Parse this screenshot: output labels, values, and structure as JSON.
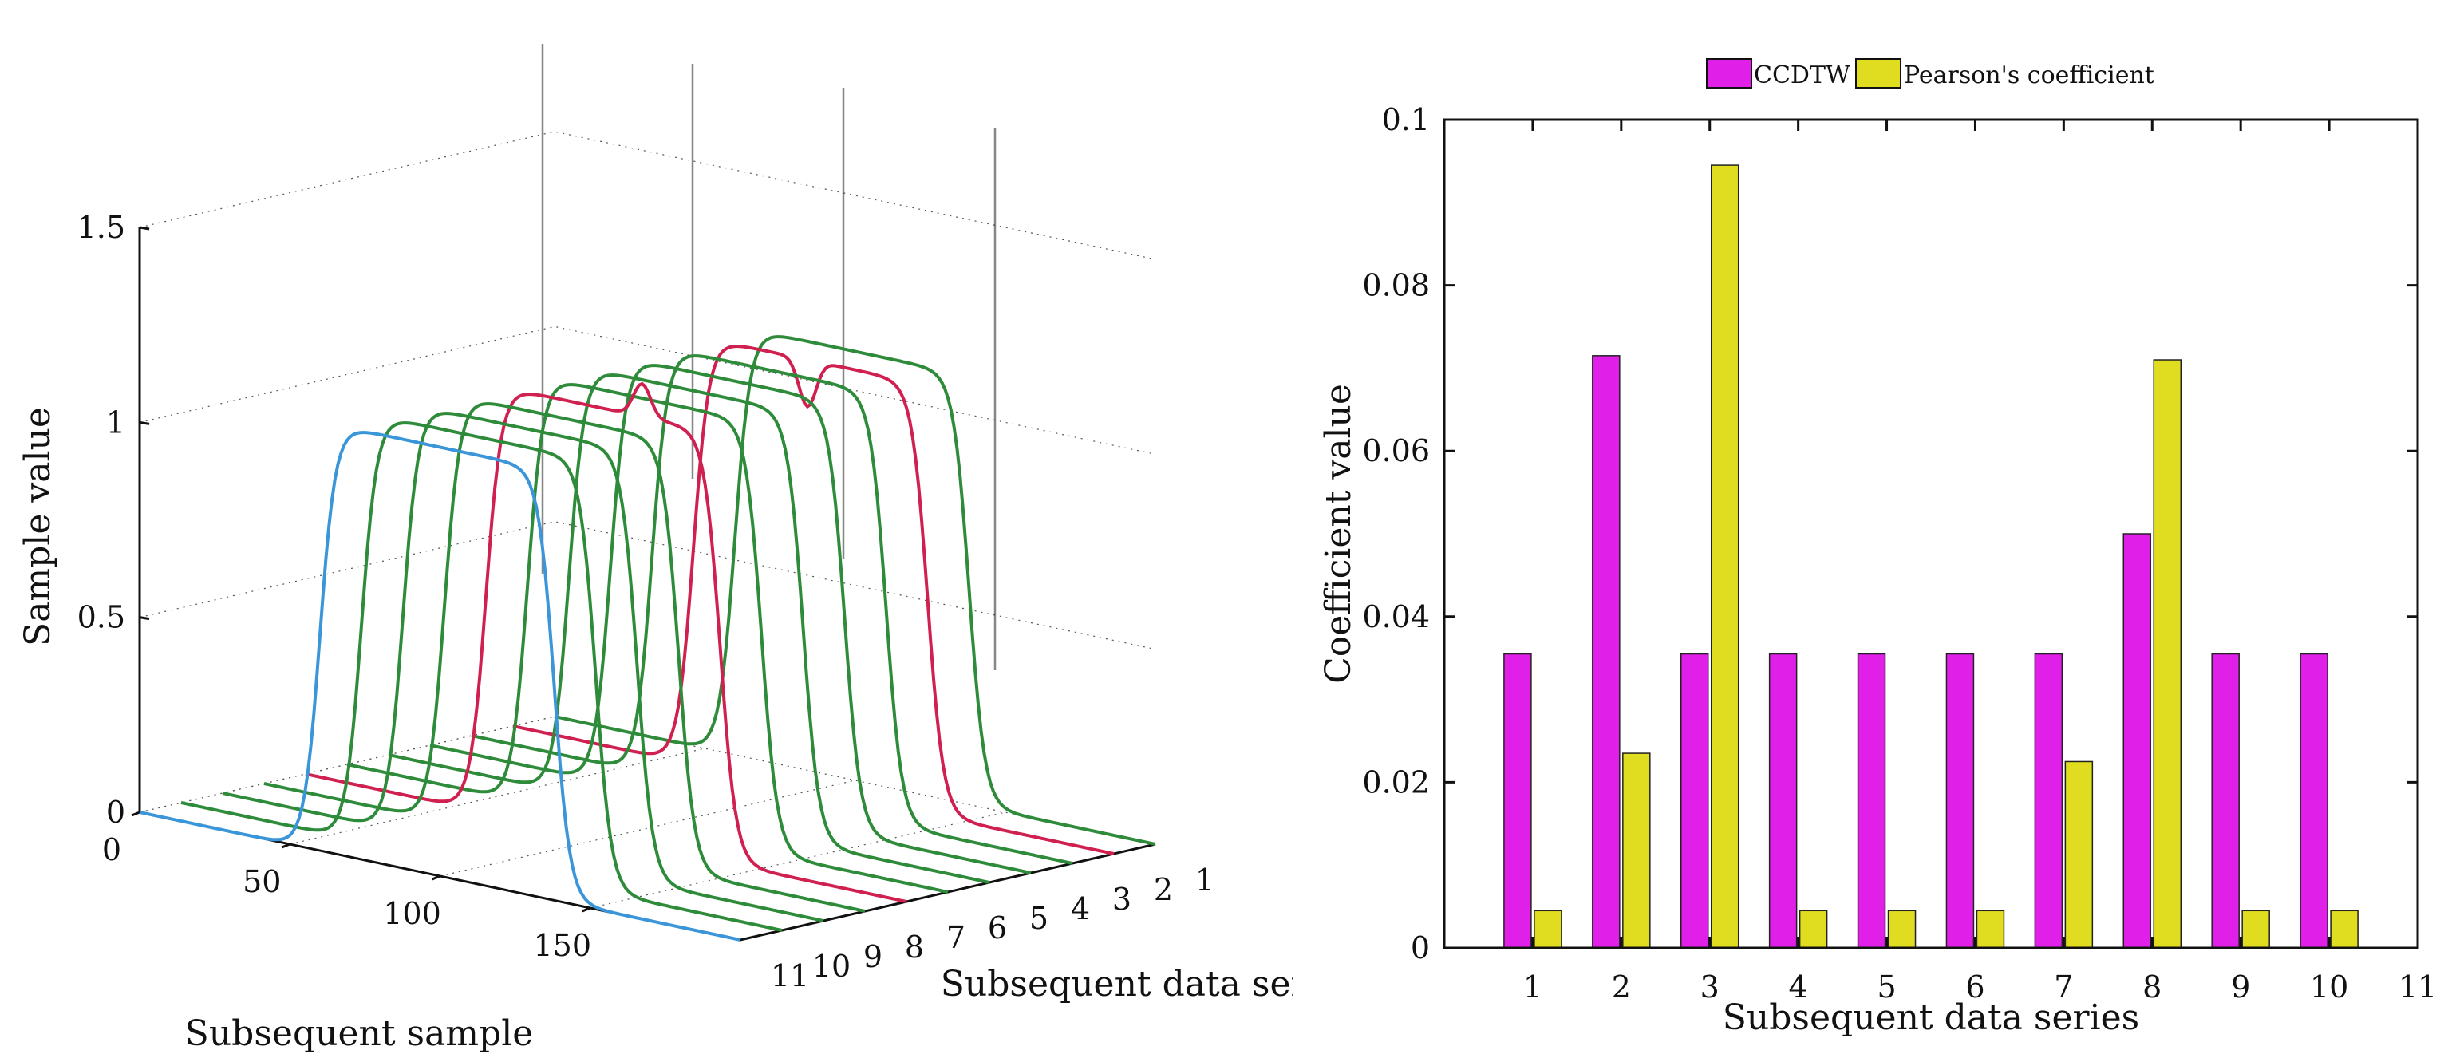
{
  "chart_data": [
    {
      "type": "line3d",
      "panel": "left",
      "zlabel": "Sample value",
      "xlabel": "Subsequent sample",
      "ylabel": "Subsequent data series",
      "z_ticks": [
        "0",
        "0.5",
        "1",
        "1.5"
      ],
      "x_ticks": [
        "0",
        "50",
        "100",
        "150"
      ],
      "y_ticks": [
        "1",
        "2",
        "3",
        "4",
        "5",
        "6",
        "7",
        "8",
        "9",
        "10",
        "11"
      ],
      "zlim": [
        0,
        1.5
      ],
      "xlim": [
        0,
        200
      ],
      "series_count": 11,
      "series": [
        {
          "name": "1",
          "color": "#2e8b3a",
          "level": 1.1,
          "dip": false
        },
        {
          "name": "2",
          "color": "#d02050",
          "level": 1.1,
          "dip": true
        },
        {
          "name": "3",
          "color": "#2e8b3a",
          "level": 1.1,
          "dip": false
        },
        {
          "name": "4",
          "color": "#2e8b3a",
          "level": 1.1,
          "dip": false
        },
        {
          "name": "5",
          "color": "#2e8b3a",
          "level": 1.1,
          "dip": false
        },
        {
          "name": "6",
          "color": "#2e8b3a",
          "level": 1.1,
          "dip": false
        },
        {
          "name": "7",
          "color": "#d02050",
          "level": 1.1,
          "dip": true
        },
        {
          "name": "8",
          "color": "#2e8b3a",
          "level": 1.1,
          "dip": false
        },
        {
          "name": "9",
          "color": "#2e8b3a",
          "level": 1.1,
          "dip": false
        },
        {
          "name": "10",
          "color": "#2e8b3a",
          "level": 1.1,
          "dip": false
        },
        {
          "name": "11",
          "color": "#3a96d8",
          "level": 1.1,
          "dip": false
        }
      ]
    },
    {
      "type": "bar",
      "panel": "right",
      "title": "",
      "xlabel": "Subsequent data series",
      "ylabel": "Coefficient value",
      "categories": [
        "1",
        "2",
        "3",
        "4",
        "5",
        "6",
        "7",
        "8",
        "9",
        "10"
      ],
      "x_ticks": [
        "1",
        "2",
        "3",
        "4",
        "5",
        "6",
        "7",
        "8",
        "9",
        "10",
        "11"
      ],
      "y_ticks": [
        "0",
        "0.02",
        "0.04",
        "0.06",
        "0.08",
        "0.1"
      ],
      "ylim": [
        0,
        0.1
      ],
      "xlim": [
        0,
        11
      ],
      "legend_position": "top",
      "series": [
        {
          "name": "CCDTW",
          "color": "#e020e8",
          "values": [
            0.0355,
            0.0715,
            0.0355,
            0.0355,
            0.0355,
            0.0355,
            0.0355,
            0.05,
            0.0355,
            0.0355
          ]
        },
        {
          "name": "Pearson's coefficient",
          "color": "#e0dc20",
          "values": [
            0.0045,
            0.0235,
            0.0945,
            0.0045,
            0.0045,
            0.0045,
            0.0225,
            0.071,
            0.0045,
            0.0045
          ]
        }
      ]
    }
  ]
}
